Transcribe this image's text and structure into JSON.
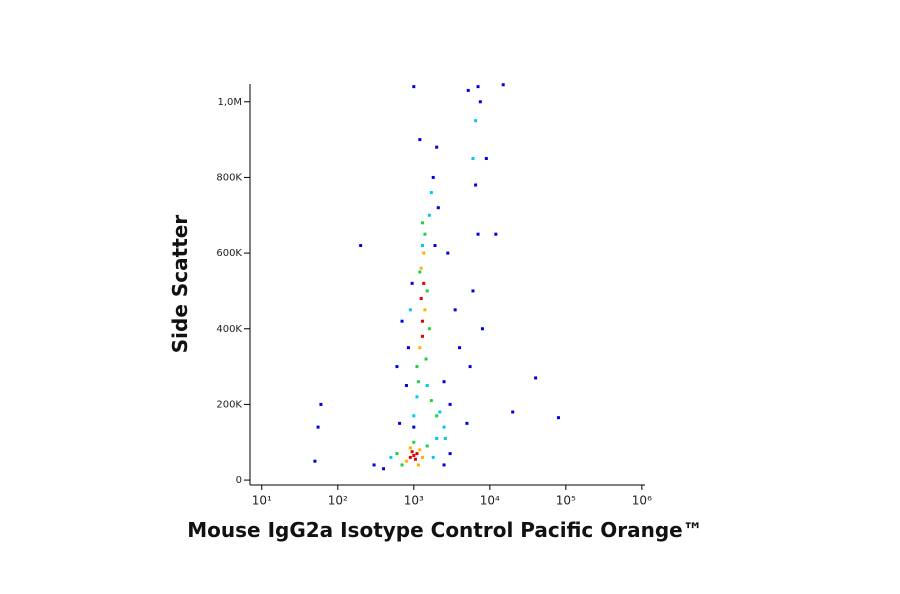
{
  "chart_data": {
    "type": "scatter",
    "x_label": "Mouse IgG2a Isotype Control  Pacific Orange™",
    "y_label": "Side Scatter",
    "xscale": "log",
    "xlim": [
      7,
      1100000
    ],
    "xticks": [
      {
        "value": 10,
        "label": "10¹"
      },
      {
        "value": 100,
        "label": "10²"
      },
      {
        "value": 1000,
        "label": "10³"
      },
      {
        "value": 10000,
        "label": "10⁴"
      },
      {
        "value": 100000,
        "label": "10⁵"
      },
      {
        "value": 1000000,
        "label": "10⁶"
      }
    ],
    "ylim": [
      -13000,
      1047000
    ],
    "yticks": [
      0,
      {
        "value": 200000,
        "label": "200K"
      },
      {
        "value": 400000,
        "label": "400K"
      },
      {
        "value": 600000,
        "label": "600K"
      },
      {
        "value": 800000,
        "label": "800K"
      },
      {
        "value": 1000000,
        "label": "1,0M"
      }
    ],
    "series": [
      {
        "color": "#0000e0",
        "x": [
          300,
          400,
          2500,
          3000,
          800,
          850,
          950,
          1800,
          2000,
          2100,
          1900,
          1000,
          3500,
          4000,
          5000,
          5500,
          6000,
          7000,
          6500,
          7500,
          5200,
          8000,
          3000,
          2800,
          700,
          600,
          650,
          2500,
          15000,
          40000,
          80000,
          200,
          60,
          55,
          50,
          9000,
          7000,
          1000,
          1200,
          12000,
          20000
        ],
        "values": [
          40000,
          30000,
          40000,
          70000,
          250000,
          350000,
          520000,
          800000,
          880000,
          720000,
          620000,
          140000,
          450000,
          350000,
          150000,
          300000,
          500000,
          650000,
          780000,
          1000000,
          1030000,
          400000,
          200000,
          600000,
          420000,
          300000,
          150000,
          260000,
          1045000,
          270000,
          165000,
          620000,
          200000,
          140000,
          50000,
          850000,
          1040000,
          1040000,
          900000,
          650000,
          180000
        ]
      },
      {
        "color": "#00c8f0",
        "x": [
          500,
          2000,
          1800,
          1000,
          900,
          1100,
          1600,
          1700,
          1500,
          1300,
          2500,
          2200,
          2600,
          6000,
          6500
        ],
        "values": [
          60000,
          110000,
          60000,
          170000,
          450000,
          220000,
          700000,
          760000,
          250000,
          620000,
          140000,
          180000,
          110000,
          850000,
          950000
        ]
      },
      {
        "color": "#20d040",
        "x": [
          600,
          1500,
          1000,
          700,
          1100,
          1150,
          1500,
          1400,
          1600,
          1200,
          1300,
          1450,
          2000,
          1700
        ],
        "values": [
          70000,
          90000,
          100000,
          40000,
          300000,
          260000,
          500000,
          650000,
          400000,
          550000,
          680000,
          320000,
          170000,
          210000
        ]
      },
      {
        "color": "#ffb000",
        "x": [
          800,
          1200,
          1300,
          900,
          1150,
          1200,
          1400,
          1250,
          1350
        ],
        "values": [
          50000,
          80000,
          60000,
          85000,
          40000,
          350000,
          450000,
          560000,
          600000
        ]
      },
      {
        "color": "#e00000",
        "x": [
          900,
          1000,
          1100,
          1050,
          950,
          1300,
          1250,
          1350,
          1300
        ],
        "values": [
          60000,
          65000,
          70000,
          55000,
          75000,
          420000,
          480000,
          520000,
          380000
        ]
      }
    ]
  }
}
